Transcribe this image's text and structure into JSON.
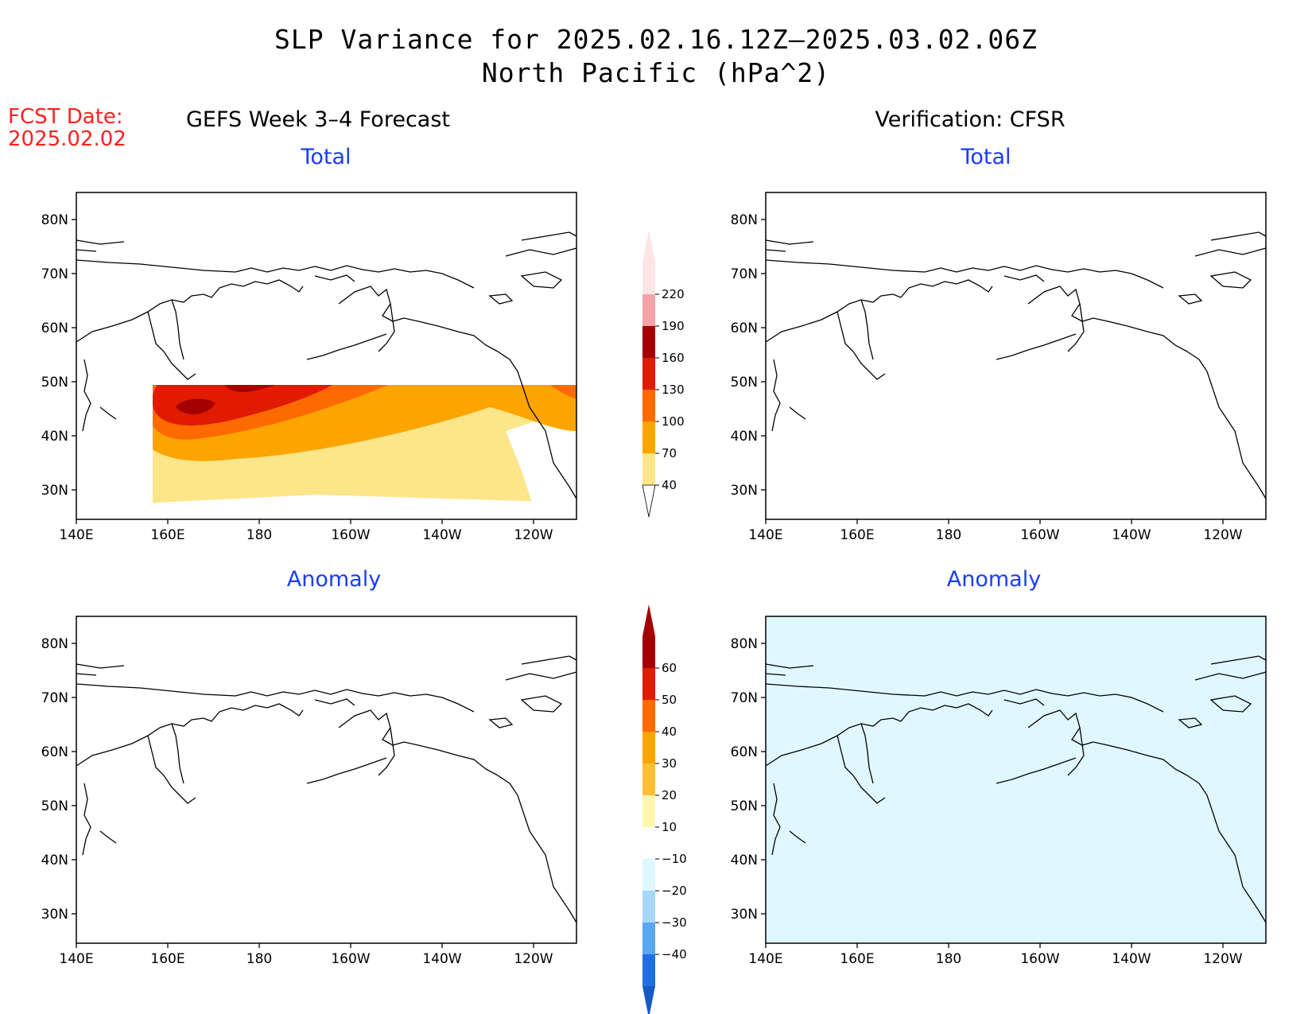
{
  "header": {
    "title_line1": "SLP Variance for 2025.02.16.12Z–2025.03.02.06Z",
    "title_line2": "North Pacific (hPa^2)",
    "fcst_label": "FCST Date:",
    "fcst_date": "2025.02.02"
  },
  "columns": {
    "left_title": "GEFS Week 3–4 Forecast",
    "right_title": "Verification: CFSR"
  },
  "panels": {
    "total_label": "Total",
    "anomaly_label": "Anomaly"
  },
  "axes": {
    "lat_ticks": [
      "80N",
      "70N",
      "60N",
      "50N",
      "40N",
      "30N"
    ],
    "lon_ticks": [
      "140E",
      "160E",
      "180",
      "160W",
      "140W",
      "120W"
    ]
  },
  "colorbars": {
    "total": {
      "levels": [
        "40",
        "70",
        "100",
        "130",
        "160",
        "190",
        "220"
      ],
      "colors": [
        "#fde58a",
        "#fca500",
        "#fd6a00",
        "#e01b00",
        "#a40000",
        "#f4a3a8",
        "#fde5e5"
      ]
    },
    "anomaly": {
      "levels": [
        "60",
        "50",
        "40",
        "30",
        "20",
        "10",
        "−10",
        "−20",
        "−30",
        "−40"
      ],
      "colors_pos": [
        "#a40000",
        "#e01b00",
        "#fd6a00",
        "#fca500",
        "#fdbf3a",
        "#fff7b0"
      ],
      "colors_neg": [
        "#dff8ff",
        "#a8d6fa",
        "#5aa8f0",
        "#1e6fe0",
        "#1558c8"
      ]
    }
  }
}
